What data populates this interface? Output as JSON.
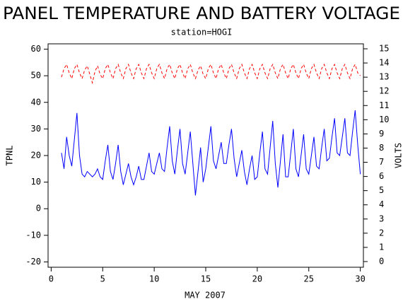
{
  "chart_data": {
    "type": "line",
    "title": "PANEL TEMPERATURE AND BATTERY VOLTAGE",
    "subtitle": "station=HOGI",
    "xlabel": "MAY 2007",
    "ylabel": "TPNL",
    "y2label": "VOLTS",
    "x": [
      1,
      1.25,
      1.5,
      1.75,
      2,
      2.25,
      2.5,
      2.75,
      3,
      3.25,
      3.5,
      3.75,
      4,
      4.25,
      4.5,
      4.75,
      5,
      5.25,
      5.5,
      5.75,
      6,
      6.25,
      6.5,
      6.75,
      7,
      7.25,
      7.5,
      7.75,
      8,
      8.25,
      8.5,
      8.75,
      9,
      9.25,
      9.5,
      9.75,
      10,
      10.25,
      10.5,
      10.75,
      11,
      11.25,
      11.5,
      11.75,
      12,
      12.25,
      12.5,
      12.75,
      13,
      13.25,
      13.5,
      13.75,
      14,
      14.25,
      14.5,
      14.75,
      15,
      15.25,
      15.5,
      15.75,
      16,
      16.25,
      16.5,
      16.75,
      17,
      17.25,
      17.5,
      17.75,
      18,
      18.25,
      18.5,
      18.75,
      19,
      19.25,
      19.5,
      19.75,
      20,
      20.25,
      20.5,
      20.75,
      21,
      21.25,
      21.5,
      21.75,
      22,
      22.25,
      22.5,
      22.75,
      23,
      23.25,
      23.5,
      23.75,
      24,
      24.25,
      24.5,
      24.75,
      25,
      25.25,
      25.5,
      25.75,
      26,
      26.25,
      26.5,
      26.75,
      27,
      27.25,
      27.5,
      27.75,
      28,
      28.25,
      28.5,
      28.75,
      29,
      29.25,
      29.5,
      29.75,
      30
    ],
    "series": [
      {
        "color": "#0000ff",
        "dash": false,
        "values": [
          21,
          15,
          27,
          20,
          16,
          26,
          36,
          20,
          13,
          12,
          14,
          13,
          12,
          13,
          15,
          12,
          11,
          18,
          24,
          14,
          11,
          17,
          24,
          14,
          9,
          13,
          17,
          12,
          9,
          12,
          16,
          11,
          11,
          16,
          21,
          14,
          13,
          17,
          21,
          15,
          14,
          23,
          31,
          18,
          13,
          22,
          30,
          17,
          13,
          21,
          29,
          17,
          5,
          14,
          23,
          10,
          15,
          23,
          31,
          18,
          15,
          20,
          25,
          17,
          17,
          24,
          30,
          19,
          12,
          17,
          22,
          14,
          9,
          15,
          20,
          11,
          12,
          21,
          29,
          15,
          13,
          23,
          33,
          17,
          8,
          18,
          28,
          12,
          12,
          21,
          30,
          15,
          12,
          20,
          28,
          15,
          13,
          20,
          27,
          16,
          15,
          23,
          30,
          18,
          19,
          27,
          34,
          21,
          20,
          27,
          34,
          21,
          20,
          29,
          37,
          24,
          13
        ]
      },
      {
        "color": "#ff0000",
        "dash": true,
        "axis": "y2",
        "values": [
          13.0,
          13.6,
          13.9,
          13.3,
          12.9,
          13.6,
          13.9,
          13.3,
          12.9,
          13.5,
          13.8,
          13.2,
          12.6,
          13.4,
          13.8,
          13.2,
          12.9,
          13.6,
          13.9,
          13.3,
          12.9,
          13.6,
          13.9,
          13.3,
          12.9,
          13.6,
          13.9,
          13.3,
          12.9,
          13.6,
          13.9,
          13.3,
          12.9,
          13.6,
          13.9,
          13.3,
          12.9,
          13.6,
          13.9,
          13.3,
          12.9,
          13.6,
          13.9,
          13.3,
          12.9,
          13.6,
          13.9,
          13.3,
          12.9,
          13.6,
          13.9,
          13.3,
          12.9,
          13.5,
          13.8,
          13.2,
          12.9,
          13.6,
          13.9,
          13.3,
          12.9,
          13.6,
          13.9,
          13.3,
          12.9,
          13.6,
          13.9,
          13.3,
          12.9,
          13.6,
          13.9,
          13.3,
          12.9,
          13.6,
          13.9,
          13.3,
          12.9,
          13.6,
          13.9,
          13.3,
          12.9,
          13.6,
          13.9,
          13.3,
          12.9,
          13.6,
          13.9,
          13.3,
          12.9,
          13.6,
          13.9,
          13.3,
          12.9,
          13.6,
          13.9,
          13.3,
          12.9,
          13.6,
          13.9,
          13.3,
          12.9,
          13.6,
          13.9,
          13.3,
          12.9,
          13.6,
          13.9,
          13.3,
          12.9,
          13.6,
          13.9,
          13.3,
          12.9,
          13.6,
          13.9,
          13.3,
          13.1
        ]
      }
    ],
    "xlim": [
      -0.3,
      30.3
    ],
    "xticks": [
      0,
      5,
      10,
      15,
      20,
      25,
      30
    ],
    "ylim": [
      -22,
      62
    ],
    "yticks": [
      -20,
      -10,
      0,
      10,
      20,
      30,
      40,
      50,
      60
    ],
    "y2lim": [
      -0.4,
      15.35
    ],
    "y2ticks": [
      0,
      1,
      2,
      3,
      4,
      5,
      6,
      7,
      8,
      9,
      10,
      11,
      12,
      13,
      14,
      15
    ]
  }
}
